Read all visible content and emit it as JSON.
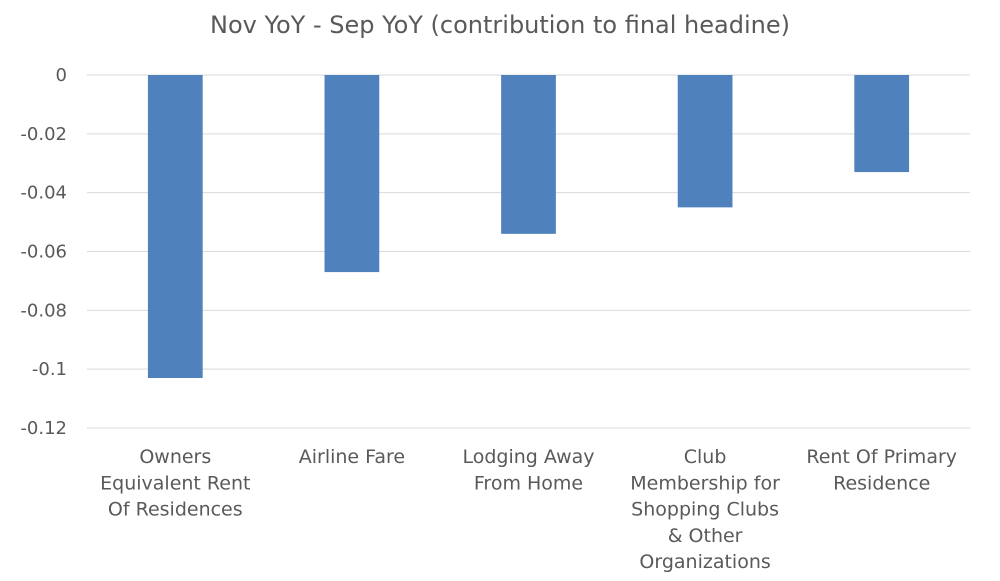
{
  "chart_data": {
    "type": "bar",
    "title": "Nov YoY - Sep YoY (contribution to final headine)",
    "xlabel": "",
    "ylabel": "",
    "ylim": [
      -0.12,
      0
    ],
    "yticks": [
      0,
      -0.02,
      -0.04,
      -0.06,
      -0.08,
      -0.1,
      -0.12
    ],
    "ytick_labels": [
      "0",
      "-0.02",
      "-0.04",
      "-0.06",
      "-0.08",
      "-0.1",
      "-0.12"
    ],
    "grid": true,
    "bar_color": "#4f81bd",
    "categories": [
      [
        "Owners",
        "Equivalent Rent",
        "Of Residences"
      ],
      [
        "Airline Fare"
      ],
      [
        "Lodging Away",
        "From Home"
      ],
      [
        "Club",
        "Membership for",
        "Shopping Clubs",
        "& Other",
        "Organizations"
      ],
      [
        "Rent Of Primary",
        "Residence"
      ]
    ],
    "values": [
      -0.103,
      -0.067,
      -0.054,
      -0.045,
      -0.033
    ]
  }
}
